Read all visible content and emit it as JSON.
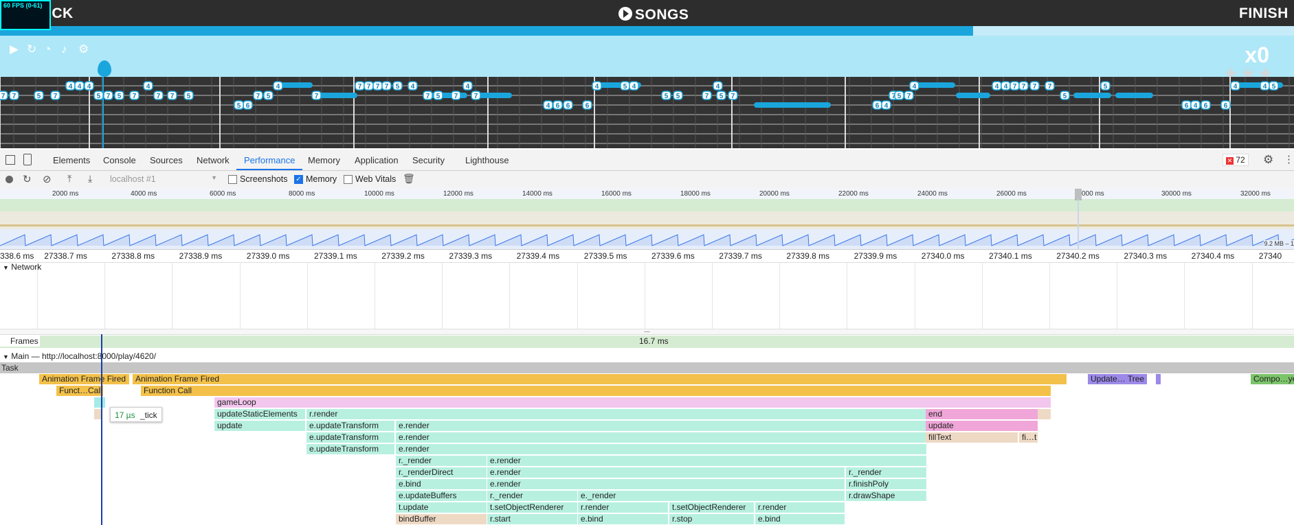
{
  "game": {
    "fps_label": "60 FPS (0-61)",
    "back_label": "BACK",
    "title": "SONGS",
    "finish_label": "FINISH",
    "progress_fraction": 0.752,
    "combo": "x0",
    "stars": "★★★",
    "controls": [
      "play-icon",
      "restart-icon",
      "speed-icon",
      "guitar-icon",
      "gear-icon"
    ],
    "highway": {
      "row1": [
        "4",
        "5",
        "4",
        "4",
        "4",
        "7",
        "7",
        "7",
        "7",
        "5",
        "4",
        "4",
        "4",
        "5",
        "4",
        "4",
        "4",
        "4",
        "4",
        "7",
        "7",
        "7",
        "7",
        "5",
        "4",
        "4",
        "5",
        "4",
        "4"
      ],
      "row2": [
        "7",
        "7",
        "5",
        "7",
        "5",
        "7",
        "5",
        "7",
        "7",
        "7",
        "5",
        "7",
        "5",
        "7",
        "7",
        "5",
        "7",
        "7",
        "5",
        "5",
        "7",
        "5",
        "7",
        "7",
        "5",
        "7",
        "5"
      ],
      "row3": [
        "4",
        "6",
        "4",
        "6",
        "6",
        "6",
        "6",
        "4",
        "6",
        "4",
        "6",
        "6",
        "5"
      ]
    }
  },
  "devtools": {
    "tabs": [
      "Elements",
      "Console",
      "Sources",
      "Network",
      "Performance",
      "Memory",
      "Application",
      "Security",
      "Lighthouse"
    ],
    "active_tab": "Performance",
    "error_count": "72",
    "target": "localhost #1",
    "checkboxes": [
      {
        "label": "Screenshots",
        "checked": false
      },
      {
        "label": "Memory",
        "checked": true
      },
      {
        "label": "Web Vitals",
        "checked": false
      }
    ],
    "overview_ticks": [
      "2000 ms",
      "4000 ms",
      "6000 ms",
      "8000 ms",
      "10000 ms",
      "12000 ms",
      "14000 ms",
      "16000 ms",
      "18000 ms",
      "20000 ms",
      "22000 ms",
      "24000 ms",
      "26000 ms",
      "000 ms",
      "30000 ms",
      "32000 ms"
    ],
    "memory_range": "9.2 MB – 1",
    "detail_ticks": [
      "338.6 ms",
      "27338.7 ms",
      "27338.8 ms",
      "27338.9 ms",
      "27339.0 ms",
      "27339.1 ms",
      "27339.2 ms",
      "27339.3 ms",
      "27339.4 ms",
      "27339.5 ms",
      "27339.6 ms",
      "27339.7 ms",
      "27339.8 ms",
      "27339.9 ms",
      "27340.0 ms",
      "27340.1 ms",
      "27340.2 ms",
      "27340.3 ms",
      "27340.4 ms",
      "27340"
    ],
    "network_label": "Network",
    "ellipsis": "...",
    "frames_label": "Frames",
    "frame_duration": "16.7 ms",
    "main_label": "Main — http://localhost:8000/play/4620/",
    "task_label": "Task",
    "tooltip_time": "17 µs",
    "tooltip_name": "_tick",
    "events": {
      "r1": [
        "Animation Frame Fired",
        "Animation Frame Fired",
        "Update… Tree",
        "Compo…yers"
      ],
      "r2": [
        "Funct…Call",
        "Function Call"
      ],
      "r3": [
        "gameLoop"
      ],
      "r4": [
        "updateStaticElements",
        "r.render",
        "end"
      ],
      "r5": [
        "update",
        "e.updateTransform",
        "e.render",
        "update"
      ],
      "r6": [
        "e.updateTransform",
        "e.render",
        "fillText",
        "fi…t"
      ],
      "r7": [
        "e.updateTransform",
        "e.render"
      ],
      "r8": [
        "r._render",
        "e.render"
      ],
      "r9": [
        "r._renderDirect",
        "e.render",
        "r._render"
      ],
      "r10": [
        "e.bind",
        "e.render",
        "r.finishPoly"
      ],
      "r11": [
        "e.updateBuffers",
        "r._render",
        "e._render",
        "r.drawShape"
      ],
      "r12": [
        "t.update",
        "t.setObjectRenderer",
        "r.render",
        "t.setObjectRenderer",
        "r.render"
      ],
      "r13": [
        "bindBuffer",
        "r.start",
        "e.bind",
        "r.stop",
        "e.bind"
      ]
    }
  }
}
